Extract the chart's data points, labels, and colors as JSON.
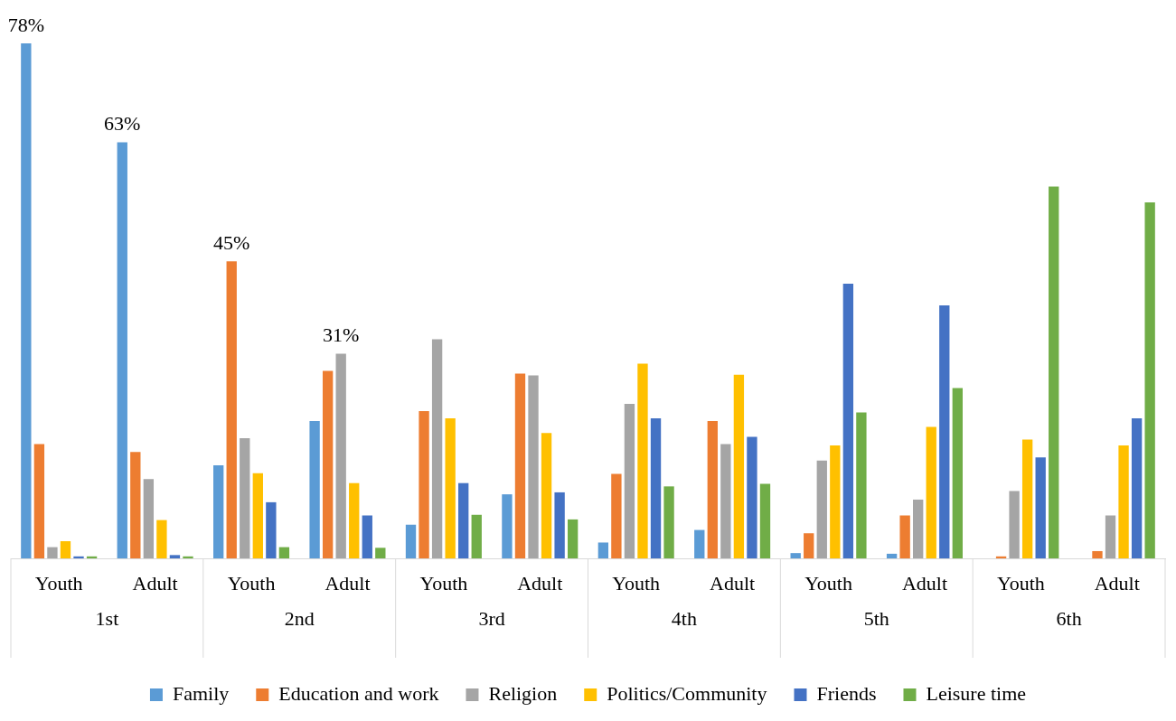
{
  "chart_data": {
    "type": "bar",
    "categories": [
      "Youth",
      "Adult",
      "Youth",
      "Adult",
      "Youth",
      "Adult",
      "Youth",
      "Adult",
      "Youth",
      "Adult",
      "Youth",
      "Adult"
    ],
    "annotations": [
      "1st",
      "2nd",
      "3rd",
      "4th",
      "5th",
      "6th"
    ],
    "ylim": [
      0,
      78
    ],
    "legend": "bottom",
    "series": [
      {
        "name": "Family",
        "color": "#5b9bd5",
        "values": [
          78,
          63,
          14.1,
          20.8,
          5.1,
          9.7,
          2.4,
          4.3,
          0.8,
          0.7,
          0,
          0
        ],
        "value_labels": [
          "78%",
          "63%",
          null,
          null,
          null,
          null,
          null,
          null,
          null,
          null,
          null,
          null
        ]
      },
      {
        "name": "Education and work",
        "color": "#ed7d31",
        "values": [
          17.3,
          16.1,
          45,
          28.4,
          22.3,
          28.0,
          12.8,
          20.8,
          3.8,
          6.5,
          0.3,
          1.1
        ],
        "value_labels": [
          null,
          null,
          "45%",
          null,
          null,
          null,
          null,
          null,
          null,
          null,
          null,
          null
        ]
      },
      {
        "name": "Religion",
        "color": "#a5a5a5",
        "values": [
          1.7,
          12.0,
          18.2,
          31,
          33.2,
          27.7,
          23.4,
          17.3,
          14.8,
          8.9,
          10.2,
          6.5
        ],
        "value_labels": [
          null,
          null,
          null,
          "31%",
          null,
          null,
          null,
          null,
          null,
          null,
          null,
          null
        ]
      },
      {
        "name": "Politics/Community",
        "color": "#ffc000",
        "values": [
          2.6,
          5.8,
          12.9,
          11.4,
          21.2,
          19.0,
          29.5,
          27.8,
          17.1,
          19.9,
          18.0,
          17.1
        ]
      },
      {
        "name": "Friends",
        "color": "#4472c4",
        "values": [
          0.3,
          0.5,
          8.5,
          6.5,
          11.4,
          10.0,
          21.2,
          18.4,
          41.6,
          38.3,
          15.3,
          21.2
        ]
      },
      {
        "name": "Leisure time",
        "color": "#70ad47",
        "values": [
          0.3,
          0.3,
          1.7,
          1.6,
          6.6,
          5.9,
          10.9,
          11.3,
          22.1,
          25.8,
          56.3,
          53.9
        ]
      }
    ]
  }
}
